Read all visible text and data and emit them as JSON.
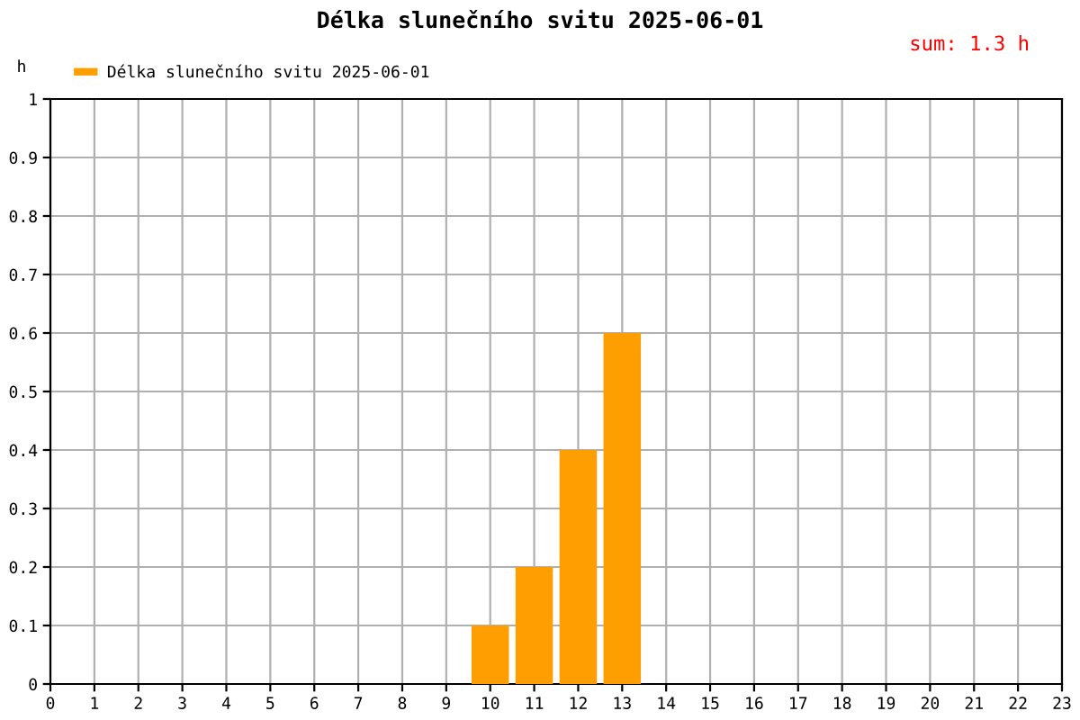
{
  "chart_data": {
    "type": "bar",
    "title": "Délka slunečního svitu 2025-06-01",
    "ylabel": "h",
    "x": [
      10,
      11,
      12,
      13
    ],
    "series": [
      {
        "name": "Délka slunečního svitu 2025-06-01",
        "color": "#ff9e00",
        "values": [
          0.1,
          0.2,
          0.4,
          0.6
        ]
      }
    ],
    "xlim": [
      0,
      23
    ],
    "xticks": [
      0,
      1,
      2,
      3,
      4,
      5,
      6,
      7,
      8,
      9,
      10,
      11,
      12,
      13,
      14,
      15,
      16,
      17,
      18,
      19,
      20,
      21,
      22,
      23
    ],
    "ylim": [
      0,
      1
    ],
    "yticks": [
      0,
      0.1,
      0.2,
      0.3,
      0.4,
      0.5,
      0.6,
      0.7,
      0.8,
      0.9,
      1
    ],
    "grid": true,
    "legend": "top left",
    "annotations": [
      "sum: 1.3 h"
    ]
  }
}
